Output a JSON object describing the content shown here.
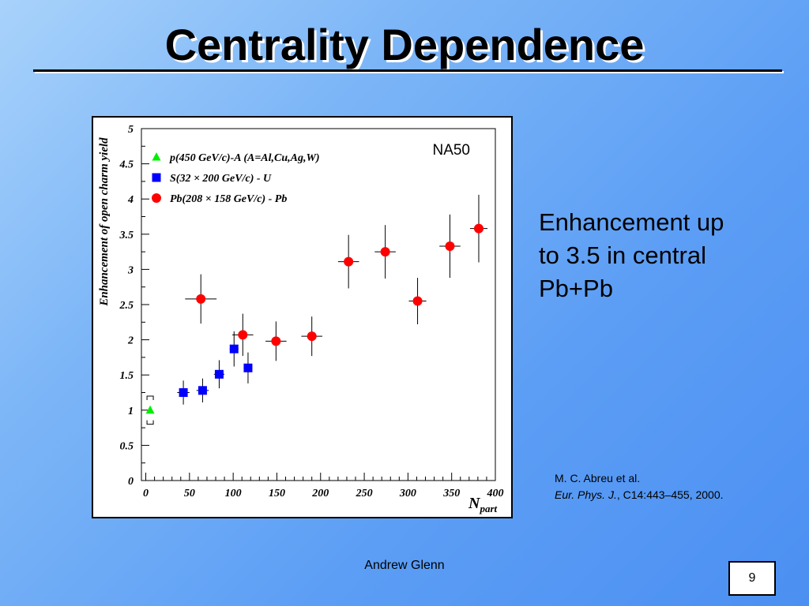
{
  "slide": {
    "title": "Centrality Dependence",
    "text": [
      "Enhancement up",
      "to 3.5 in central",
      "Pb+Pb"
    ],
    "citation": {
      "authors": "M. C. Abreu et al.",
      "journal": "Eur. Phys. J.",
      "rest": ", C14:443–455, 2000."
    },
    "footer": "Andrew Glenn",
    "page_number": "9"
  },
  "chart_data": {
    "type": "scatter",
    "annotation": "NA50",
    "ylabel": "Enhancement of open charm yield",
    "xlabel": "N",
    "xlabel_subscript": "part",
    "xlim": [
      -5,
      400
    ],
    "ylim": [
      0,
      5
    ],
    "x_ticks": [
      "0",
      "50",
      "100",
      "150",
      "200",
      "250",
      "300",
      "350",
      "400"
    ],
    "y_ticks": [
      "0",
      "0.5",
      "1",
      "1.5",
      "2",
      "2.5",
      "3",
      "3.5",
      "4",
      "4.5",
      "5"
    ],
    "grid": false,
    "legend_position": "top-left",
    "series": [
      {
        "name": "p(450 GeV/c)-A (A=Al,Cu,Ag,W)",
        "marker": "triangle",
        "color": "#00ee00",
        "points": [
          {
            "x": 5,
            "y": 1.0,
            "yerr": 0.03,
            "sys": [
              0.8,
              1.2
            ]
          }
        ]
      },
      {
        "name": "S(32 × 200 GeV/c) - U",
        "marker": "square",
        "color": "#0000ff",
        "points": [
          {
            "x": 43,
            "y": 1.25,
            "xerr": 7,
            "yerr_lo": 0.17,
            "yerr_hi": 0.17
          },
          {
            "x": 65,
            "y": 1.28,
            "xerr": 7,
            "yerr_lo": 0.17,
            "yerr_hi": 0.17
          },
          {
            "x": 84,
            "y": 1.51,
            "xerr": 6,
            "yerr_lo": 0.2,
            "yerr_hi": 0.2
          },
          {
            "x": 101,
            "y": 1.87,
            "xerr": 5,
            "yerr_lo": 0.25,
            "yerr_hi": 0.25
          },
          {
            "x": 117,
            "y": 1.6,
            "xerr": 5,
            "yerr_lo": 0.22,
            "yerr_hi": 0.22
          }
        ]
      },
      {
        "name": "Pb(208 × 158 GeV/c) - Pb",
        "marker": "circle",
        "color": "#ff0000",
        "points": [
          {
            "x": 63,
            "y": 2.58,
            "xerr": 18,
            "yerr_lo": 0.35,
            "yerr_hi": 0.35
          },
          {
            "x": 111,
            "y": 2.07,
            "xerr": 12,
            "yerr_lo": 0.3,
            "yerr_hi": 0.3
          },
          {
            "x": 149,
            "y": 1.98,
            "xerr": 12,
            "yerr_lo": 0.28,
            "yerr_hi": 0.28
          },
          {
            "x": 190,
            "y": 2.05,
            "xerr": 12,
            "yerr_lo": 0.28,
            "yerr_hi": 0.28
          },
          {
            "x": 232,
            "y": 3.11,
            "xerr": 12,
            "yerr_lo": 0.38,
            "yerr_hi": 0.38
          },
          {
            "x": 274,
            "y": 3.25,
            "xerr": 12,
            "yerr_lo": 0.38,
            "yerr_hi": 0.38
          },
          {
            "x": 311,
            "y": 2.55,
            "xerr": 10,
            "yerr_lo": 0.33,
            "yerr_hi": 0.33
          },
          {
            "x": 348,
            "y": 3.33,
            "xerr": 12,
            "yerr_lo": 0.45,
            "yerr_hi": 0.45
          },
          {
            "x": 381,
            "y": 3.58,
            "xerr": 10,
            "yerr_lo": 0.48,
            "yerr_hi": 0.48
          }
        ]
      }
    ]
  }
}
